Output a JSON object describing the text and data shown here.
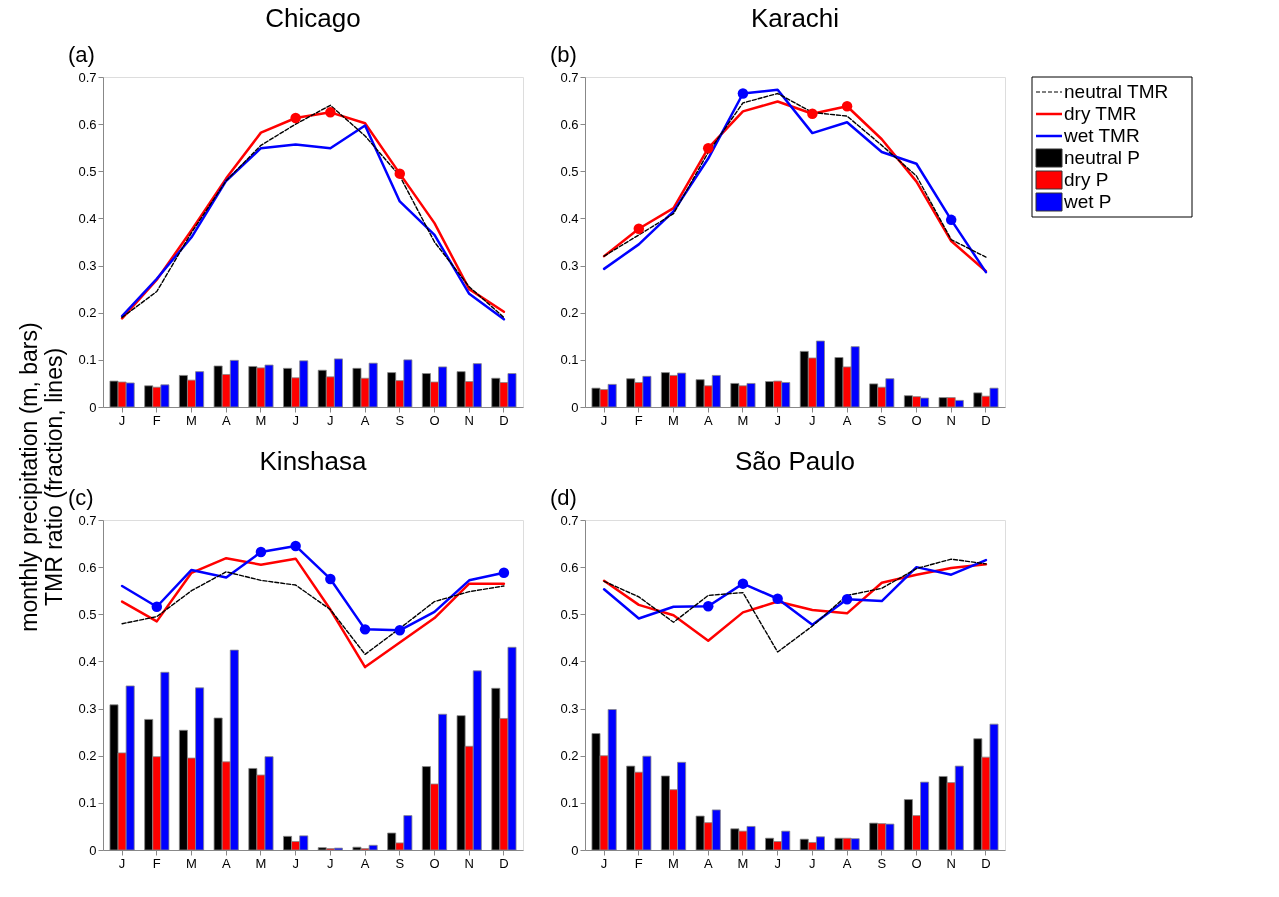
{
  "chart_data": [
    {
      "type": "bar",
      "title": "Chicago",
      "annotations": [
        "(a)"
      ],
      "ylabel": "monthly precipitation (m, bars)\nTMR ratio (fraction, lines)",
      "categories": [
        "J",
        "F",
        "M",
        "A",
        "M",
        "J",
        "J",
        "A",
        "S",
        "O",
        "N",
        "D"
      ],
      "ylim": [
        0,
        0.7
      ],
      "yticks": [
        0,
        0.1,
        0.2,
        0.3,
        0.4,
        0.5,
        0.6,
        0.7
      ],
      "series": [
        {
          "type": "line",
          "line_style": "dashed",
          "color": "#000000",
          "values": [
            0.19,
            0.245,
            0.37,
            0.48,
            0.555,
            0.6,
            0.64,
            0.575,
            0.49,
            0.35,
            0.255,
            0.19
          ]
        },
        {
          "type": "line",
          "line_style": "solid",
          "color": "#ff0000",
          "values": [
            0.188,
            0.27,
            0.375,
            0.485,
            0.582,
            0.613,
            0.625,
            0.602,
            0.495,
            0.39,
            0.25,
            0.202
          ]
        },
        {
          "type": "line",
          "line_style": "solid",
          "color": "#0000ff",
          "values": [
            0.193,
            0.272,
            0.36,
            0.48,
            0.549,
            0.557,
            0.549,
            0.597,
            0.436,
            0.365,
            0.24,
            0.186
          ]
        },
        {
          "color": "#000000",
          "values": [
            0.055,
            0.045,
            0.067,
            0.087,
            0.086,
            0.082,
            0.078,
            0.082,
            0.073,
            0.071,
            0.075,
            0.061
          ]
        },
        {
          "color": "#ff0000",
          "values": [
            0.053,
            0.042,
            0.057,
            0.069,
            0.083,
            0.062,
            0.064,
            0.061,
            0.056,
            0.053,
            0.054,
            0.052
          ]
        },
        {
          "color": "#0000ff",
          "values": [
            0.051,
            0.047,
            0.075,
            0.099,
            0.089,
            0.098,
            0.102,
            0.093,
            0.1,
            0.085,
            0.092,
            0.071
          ]
        },
        {
          "type": "scatter",
          "marker": "circle",
          "color": "#ff0000",
          "values": [
            null,
            null,
            null,
            null,
            null,
            0.613,
            0.625,
            null,
            0.495,
            null,
            null,
            null
          ]
        }
      ]
    },
    {
      "type": "bar",
      "title": "Karachi",
      "annotations": [
        "(b)"
      ],
      "legend": "right",
      "categories": [
        "J",
        "F",
        "M",
        "A",
        "M",
        "J",
        "J",
        "A",
        "S",
        "O",
        "N",
        "D"
      ],
      "ylim": [
        0,
        0.7
      ],
      "yticks": [
        0,
        0.1,
        0.2,
        0.3,
        0.4,
        0.5,
        0.6,
        0.7
      ],
      "series": [
        {
          "name": "neutral TMR",
          "type": "line",
          "line_style": "dashed",
          "color": "#000000",
          "values": [
            0.32,
            0.365,
            0.41,
            0.54,
            0.645,
            0.665,
            0.625,
            0.617,
            0.555,
            0.49,
            0.355,
            0.318
          ]
        },
        {
          "name": "dry TMR",
          "type": "line",
          "line_style": "solid",
          "color": "#ff0000",
          "values": [
            0.32,
            0.378,
            0.422,
            0.549,
            0.627,
            0.648,
            0.622,
            0.638,
            0.568,
            0.478,
            0.352,
            0.288
          ]
        },
        {
          "name": "wet TMR",
          "type": "line",
          "line_style": "solid",
          "color": "#0000ff",
          "values": [
            0.293,
            0.345,
            0.415,
            0.527,
            0.665,
            0.673,
            0.581,
            0.604,
            0.541,
            0.516,
            0.397,
            0.286
          ]
        },
        {
          "name": "neutral P",
          "color": "#000000",
          "values": [
            0.04,
            0.06,
            0.073,
            0.058,
            0.05,
            0.054,
            0.118,
            0.105,
            0.049,
            0.024,
            0.02,
            0.03
          ]
        },
        {
          "name": "dry P",
          "color": "#ff0000",
          "values": [
            0.037,
            0.052,
            0.067,
            0.045,
            0.045,
            0.055,
            0.104,
            0.085,
            0.042,
            0.022,
            0.02,
            0.023
          ]
        },
        {
          "name": "wet P",
          "color": "#0000ff",
          "values": [
            0.048,
            0.065,
            0.072,
            0.067,
            0.05,
            0.052,
            0.14,
            0.128,
            0.06,
            0.019,
            0.014,
            0.04
          ]
        },
        {
          "type": "scatter",
          "marker": "circle",
          "color": "#ff0000",
          "values": [
            null,
            0.378,
            null,
            0.549,
            null,
            null,
            0.622,
            0.638,
            null,
            null,
            null,
            null
          ]
        },
        {
          "type": "scatter",
          "marker": "circle",
          "color": "#0000ff",
          "values": [
            null,
            null,
            null,
            null,
            0.665,
            null,
            null,
            null,
            null,
            null,
            0.397,
            null
          ]
        }
      ]
    },
    {
      "type": "bar",
      "title": "Kinshasa",
      "annotations": [
        "(c)"
      ],
      "categories": [
        "J",
        "F",
        "M",
        "A",
        "M",
        "J",
        "J",
        "A",
        "S",
        "O",
        "N",
        "D"
      ],
      "ylim": [
        0,
        0.7
      ],
      "yticks": [
        0,
        0.1,
        0.2,
        0.3,
        0.4,
        0.5,
        0.6,
        0.7
      ],
      "series": [
        {
          "type": "line",
          "line_style": "dashed",
          "color": "#000000",
          "values": [
            0.48,
            0.495,
            0.55,
            0.59,
            0.572,
            0.562,
            0.51,
            0.415,
            0.47,
            0.527,
            0.548,
            0.56
          ]
        },
        {
          "type": "line",
          "line_style": "solid",
          "color": "#ff0000",
          "values": [
            0.527,
            0.485,
            0.588,
            0.619,
            0.605,
            0.618,
            0.51,
            0.388,
            0.44,
            0.492,
            0.565,
            0.565
          ]
        },
        {
          "type": "line",
          "line_style": "solid",
          "color": "#0000ff",
          "values": [
            0.56,
            0.516,
            0.594,
            0.578,
            0.632,
            0.645,
            0.575,
            0.468,
            0.466,
            0.505,
            0.572,
            0.588
          ]
        },
        {
          "color": "#000000",
          "values": [
            0.308,
            0.277,
            0.254,
            0.28,
            0.173,
            0.029,
            0.005,
            0.006,
            0.036,
            0.177,
            0.285,
            0.343
          ]
        },
        {
          "color": "#ff0000",
          "values": [
            0.206,
            0.198,
            0.195,
            0.187,
            0.159,
            0.018,
            0.003,
            0.003,
            0.015,
            0.14,
            0.22,
            0.279
          ]
        },
        {
          "color": "#0000ff",
          "values": [
            0.348,
            0.377,
            0.344,
            0.424,
            0.198,
            0.03,
            0.004,
            0.01,
            0.073,
            0.288,
            0.38,
            0.43
          ]
        },
        {
          "type": "scatter",
          "marker": "circle",
          "color": "#0000ff",
          "values": [
            null,
            0.516,
            null,
            null,
            0.632,
            0.645,
            0.575,
            0.468,
            0.466,
            null,
            null,
            0.588
          ]
        }
      ]
    },
    {
      "type": "bar",
      "title": "São Paulo",
      "annotations": [
        "(d)"
      ],
      "categories": [
        "J",
        "F",
        "M",
        "A",
        "M",
        "J",
        "J",
        "A",
        "S",
        "O",
        "N",
        "D"
      ],
      "ylim": [
        0,
        0.7
      ],
      "yticks": [
        0,
        0.1,
        0.2,
        0.3,
        0.4,
        0.5,
        0.6,
        0.7
      ],
      "series": [
        {
          "type": "line",
          "line_style": "dashed",
          "color": "#000000",
          "values": [
            0.57,
            0.537,
            0.483,
            0.54,
            0.546,
            0.42,
            0.475,
            0.54,
            0.555,
            0.597,
            0.617,
            0.607
          ]
        },
        {
          "type": "line",
          "line_style": "solid",
          "color": "#ff0000",
          "values": [
            0.571,
            0.52,
            0.498,
            0.444,
            0.504,
            0.527,
            0.509,
            0.502,
            0.567,
            0.584,
            0.598,
            0.606
          ]
        },
        {
          "type": "line",
          "line_style": "solid",
          "color": "#0000ff",
          "values": [
            0.553,
            0.491,
            0.516,
            0.517,
            0.565,
            0.533,
            0.478,
            0.532,
            0.528,
            0.6,
            0.584,
            0.615
          ]
        },
        {
          "color": "#000000",
          "values": [
            0.247,
            0.178,
            0.157,
            0.072,
            0.045,
            0.025,
            0.023,
            0.025,
            0.057,
            0.107,
            0.156,
            0.236
          ]
        },
        {
          "color": "#ff0000",
          "values": [
            0.2,
            0.165,
            0.128,
            0.058,
            0.04,
            0.018,
            0.016,
            0.025,
            0.056,
            0.073,
            0.143,
            0.197
          ]
        },
        {
          "color": "#0000ff",
          "values": [
            0.298,
            0.199,
            0.186,
            0.085,
            0.05,
            0.04,
            0.028,
            0.024,
            0.055,
            0.144,
            0.178,
            0.267
          ]
        },
        {
          "type": "scatter",
          "marker": "circle",
          "color": "#0000ff",
          "values": [
            null,
            null,
            null,
            0.517,
            0.565,
            0.533,
            null,
            0.532,
            null,
            null,
            null,
            null
          ]
        }
      ]
    }
  ]
}
